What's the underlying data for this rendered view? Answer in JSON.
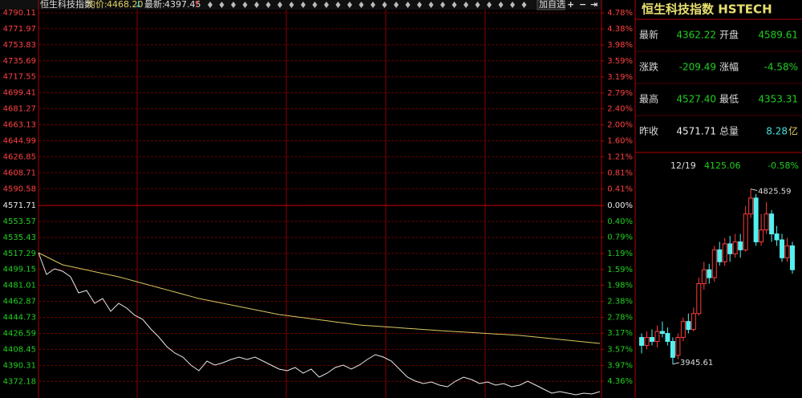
{
  "header": {
    "name": "恒生科技指数",
    "avg_label": "均价:",
    "avg": "4468.20",
    "avg_arrow": "↓",
    "last_label": "最新:",
    "last": "4397.45",
    "last_arrow": "↑",
    "add_button": "加自选"
  },
  "quote_panel": {
    "title": "恒生科技指数 HSTECH",
    "rows": [
      [
        {
          "label": "最新",
          "value": "4362.22"
        },
        {
          "label": "开盘",
          "value": "4589.61"
        }
      ],
      [
        {
          "label": "涨跌",
          "value": "-209.49"
        },
        {
          "label": "涨幅",
          "value": "-4.58%"
        }
      ],
      [
        {
          "label": "最高",
          "value": "4527.40"
        },
        {
          "label": "最低",
          "value": "4353.31"
        }
      ],
      [
        {
          "label": "昨收",
          "value": "4571.71"
        },
        {
          "label": "总量",
          "value": "8.28",
          "unit": "亿"
        }
      ]
    ]
  },
  "chart_data": [
    {
      "type": "line",
      "categories": [
        null,
        null,
        null,
        null,
        null,
        null,
        null,
        null,
        null,
        null,
        null,
        null,
        null,
        null,
        null,
        null,
        null,
        null,
        null,
        null,
        null,
        null,
        null,
        null,
        null,
        null,
        null,
        null,
        null,
        null,
        null,
        null,
        null,
        null,
        null,
        null,
        null,
        null,
        null,
        null,
        null,
        null,
        null,
        null,
        null,
        null,
        null,
        null,
        null,
        null,
        null,
        null,
        null,
        null,
        null,
        null,
        null,
        null,
        null,
        null,
        null,
        null,
        null,
        null,
        null,
        null,
        null,
        null,
        null,
        null,
        null
      ],
      "series": [
        {
          "color": "#e8e8e8",
          "values": [
            4518.02,
            4493.45,
            4499.82,
            4497.09,
            4490.72,
            4472.52,
            4475.25,
            4460.69,
            4466.15,
            4451.59,
            4460.69,
            4455.23,
            4447.04,
            4442.49,
            4431.57,
            4422.47,
            4411.55,
            4404.27,
            4399.72,
            4390.62,
            4384.25,
            4395.17,
            4390.62,
            4393.35,
            4396.99,
            4399.72,
            4396.99,
            4399.72,
            4395.17,
            4390.62,
            4386.07,
            4384.25,
            4387.89,
            4381.52,
            4386.07,
            4376.97,
            4381.52,
            4387.89,
            4390.62,
            4386.07,
            4390.62,
            4396.99,
            4402.45,
            4399.72,
            4395.17,
            4386.07,
            4376.97,
            4372.42,
            4369.69,
            4371.51,
            4367.87,
            4366.05,
            4372.42,
            4376.97,
            4374.24,
            4369.69,
            4371.51,
            4367.87,
            4369.69,
            4366.05,
            4367.87,
            4372.42,
            4367.87,
            4363.32,
            4358.77,
            4360.59,
            4358.77,
            4356.95,
            4358.77,
            4357.86,
            4360.59
          ]
        },
        {
          "color": "#d8c860",
          "values": [
            4518.02,
            4513.47,
            4508.92,
            4504.37,
            4502.46,
            4500.46,
            4498.55,
            4496.54,
            4494.63,
            4492.63,
            4490.72,
            4488.26,
            4485.81,
            4483.35,
            4480.89,
            4478.43,
            4475.98,
            4473.52,
            4471.06,
            4468.61,
            4466.15,
            4464.33,
            4462.51,
            4460.69,
            4458.87,
            4457.05,
            4455.23,
            4453.41,
            4451.59,
            4449.77,
            4447.95,
            4446.77,
            4445.58,
            4444.4,
            4443.22,
            4442.03,
            4440.85,
            4439.67,
            4438.49,
            4437.3,
            4436.12,
            4435.48,
            4434.85,
            4434.21,
            4433.57,
            4432.94,
            4432.3,
            4431.66,
            4431.03,
            4430.39,
            4429.75,
            4429.2,
            4428.66,
            4428.11,
            4427.57,
            4427.02,
            4426.47,
            4425.93,
            4425.38,
            4424.84,
            4424.29,
            4423.38,
            4422.47,
            4421.56,
            4420.65,
            4419.74,
            4418.83,
            4417.92,
            4417.01,
            4416.1,
            4415.19
          ]
        }
      ],
      "ylim": [
        4353.31,
        4804.67
      ],
      "yticks": [
        4790.11,
        4771.97,
        4753.83,
        4735.69,
        4717.55,
        4699.41,
        4681.27,
        4663.13,
        4644.99,
        4626.85,
        4608.71,
        4590.58,
        4571.71,
        4553.57,
        4535.43,
        4517.29,
        4499.15,
        4481.01,
        4462.87,
        4444.73,
        4426.59,
        4408.45,
        4390.31,
        4372.18
      ],
      "y2lim": [
        -4.78,
        5.1
      ],
      "y2ticks": [
        {
          "value": 4.78,
          "label": "4.78%"
        },
        {
          "value": 4.38,
          "label": "4.38%"
        },
        {
          "value": 3.98,
          "label": "3.98%"
        },
        {
          "value": 3.59,
          "label": "3.59%"
        },
        {
          "value": 3.19,
          "label": "3.19%"
        },
        {
          "value": 2.79,
          "label": "2.79%"
        },
        {
          "value": 2.4,
          "label": "2.40%"
        },
        {
          "value": 2.0,
          "label": "2.00%"
        },
        {
          "value": 1.6,
          "label": "1.60%"
        },
        {
          "value": 1.21,
          "label": "1.21%"
        },
        {
          "value": 0.81,
          "label": "0.81%"
        },
        {
          "value": 0.41,
          "label": "0.41%"
        },
        {
          "value": 0,
          "label": "0.00%"
        },
        {
          "value": -0.4,
          "label": "0.40%"
        },
        {
          "value": -0.79,
          "label": "0.79%"
        },
        {
          "value": -1.19,
          "label": "1.19%"
        },
        {
          "value": -1.59,
          "label": "1.59%"
        },
        {
          "value": -1.98,
          "label": "1.98%"
        },
        {
          "value": -2.38,
          "label": "2.38%"
        },
        {
          "value": -2.78,
          "label": "2.78%"
        },
        {
          "value": -3.17,
          "label": "3.17%"
        },
        {
          "value": -3.57,
          "label": "3.57%"
        },
        {
          "value": -3.97,
          "label": "3.97%"
        },
        {
          "value": -4.36,
          "label": "4.36%"
        }
      ],
      "grid": true
    },
    {
      "type": "candlestick",
      "date": "12/19",
      "price": "4125.06",
      "change": "-0.58%",
      "categories": [
        null,
        null,
        null,
        null,
        null,
        null,
        null,
        null,
        null,
        null,
        null,
        null,
        null,
        null,
        null,
        null,
        null,
        null,
        null,
        null,
        null,
        null,
        null,
        null,
        null,
        null,
        null,
        null,
        null,
        null
      ],
      "open": [
        4080,
        4040,
        4080,
        4060,
        4110,
        4100,
        4060,
        3990,
        4080,
        4160,
        4120,
        4200,
        4350,
        4420,
        4380,
        4520,
        4460,
        4550,
        4500,
        4560,
        4520,
        4700,
        4780,
        4560,
        4620,
        4700,
        4600,
        4570,
        4480,
        4540
      ],
      "high": [
        4100,
        4110,
        4120,
        4140,
        4160,
        4130,
        4080,
        4100,
        4180,
        4200,
        4230,
        4380,
        4460,
        4450,
        4540,
        4560,
        4580,
        4590,
        4600,
        4600,
        4740,
        4825.59,
        4800,
        4700,
        4760,
        4720,
        4640,
        4600,
        4580,
        4560
      ],
      "low": [
        4000,
        4020,
        4040,
        4030,
        4080,
        4040,
        3945.61,
        3970,
        4060,
        4100,
        4110,
        4190,
        4320,
        4350,
        4360,
        4440,
        4440,
        4460,
        4480,
        4480,
        4510,
        4680,
        4540,
        4540,
        4600,
        4560,
        4540,
        4460,
        4460,
        4400
      ],
      "close": [
        4040,
        4080,
        4060,
        4110,
        4100,
        4060,
        3980,
        4080,
        4160,
        4120,
        4200,
        4350,
        4420,
        4380,
        4520,
        4460,
        4550,
        4500,
        4560,
        4520,
        4700,
        4780,
        4560,
        4620,
        4700,
        4600,
        4570,
        4480,
        4540,
        4420
      ],
      "high_label": "4825.59",
      "low_label": "3945.61",
      "ylim": [
        3800,
        4880
      ],
      "up_color": "#ff3c3c",
      "down_color": "#54f0f0"
    }
  ]
}
